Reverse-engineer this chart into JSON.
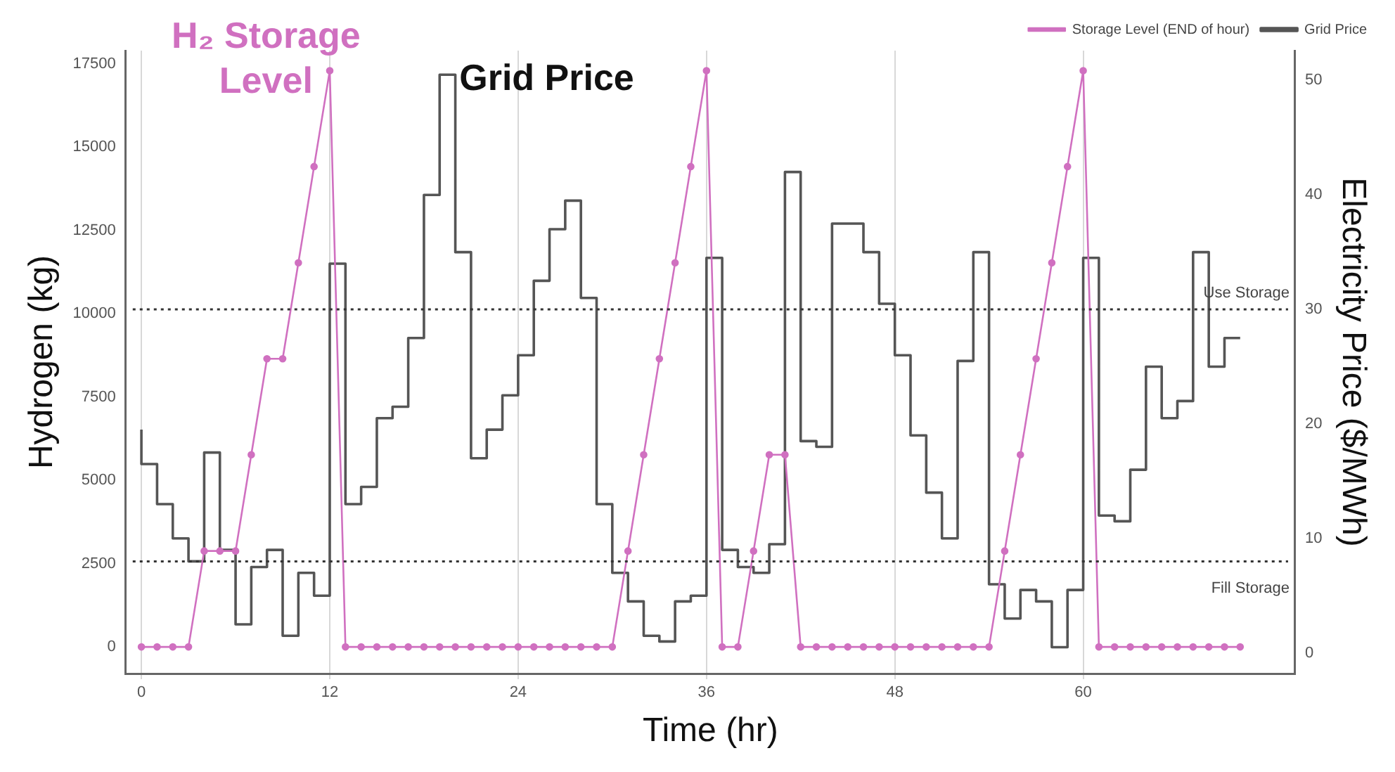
{
  "chart_data": {
    "type": "line",
    "xlabel": "Time (hr)",
    "ylabel": "Hydrogen (kg)",
    "y2label": "Electricity Price ($/MWh)",
    "annotations": [
      "H₂ Storage Level",
      "Grid Price"
    ],
    "x": [
      0,
      1,
      2,
      3,
      4,
      5,
      6,
      7,
      8,
      9,
      10,
      11,
      12,
      13,
      14,
      15,
      16,
      17,
      18,
      19,
      20,
      21,
      22,
      23,
      24,
      25,
      26,
      27,
      28,
      29,
      30,
      31,
      32,
      33,
      34,
      35,
      36,
      37,
      38,
      39,
      40,
      41,
      42,
      43,
      44,
      45,
      46,
      47,
      48,
      49,
      50,
      51,
      52,
      53,
      54,
      55,
      56,
      57,
      58,
      59,
      60,
      61,
      62,
      63,
      64,
      65,
      66,
      67,
      68,
      69,
      70
    ],
    "series": [
      {
        "name": "Storage Level (END of hour)",
        "type": "line",
        "marker": "circle",
        "color": "#d070c0",
        "values": [
          0,
          0,
          0,
          0,
          2880,
          2880,
          2880,
          5770,
          8650,
          8650,
          11530,
          14420,
          17300,
          0,
          0,
          0,
          0,
          0,
          0,
          0,
          0,
          0,
          0,
          0,
          0,
          0,
          0,
          0,
          0,
          0,
          0,
          2880,
          5770,
          8650,
          11530,
          14420,
          17300,
          0,
          0,
          2880,
          5770,
          5770,
          0,
          0,
          0,
          0,
          0,
          0,
          0,
          0,
          0,
          0,
          0,
          0,
          0,
          2880,
          5770,
          8650,
          11530,
          14420,
          17300,
          0,
          0,
          0,
          0,
          0,
          0,
          0,
          0,
          0,
          0
        ]
      },
      {
        "name": "Grid Price",
        "type": "step",
        "axis": "y2",
        "marker": "none",
        "color": "#555555",
        "values": [
          19.5,
          16.5,
          13,
          10,
          8,
          17.5,
          9,
          2.5,
          7.5,
          9,
          1.5,
          7,
          5,
          34,
          13,
          14.5,
          20.5,
          21.5,
          27.5,
          40,
          50.5,
          35,
          17,
          19.5,
          22.5,
          26,
          32.5,
          37,
          39.5,
          31,
          13,
          7,
          4.5,
          1.5,
          1,
          4.5,
          5,
          34.5,
          9,
          7.5,
          7,
          9.5,
          42,
          18.5,
          18,
          37.5,
          37.5,
          35,
          30.5,
          26,
          19,
          14,
          10,
          25.5,
          35,
          6,
          3,
          5.5,
          4.5,
          0.5,
          5.5,
          34.5,
          12,
          11.5,
          16,
          25,
          20.5,
          22,
          35,
          25,
          27.5
        ]
      }
    ],
    "xlim": [
      -1,
      73.5
    ],
    "xticks": [
      0,
      12,
      24,
      36,
      48,
      60
    ],
    "ylim": [
      -800,
      17900
    ],
    "yticks": [
      0,
      2500,
      5000,
      7500,
      10000,
      12500,
      15000,
      17500
    ],
    "y2lim": [
      -1.8,
      52.6
    ],
    "y2ticks": [
      0,
      10,
      20,
      30,
      40,
      50
    ],
    "ref_lines": [
      {
        "axis": "y2",
        "value": 30,
        "label": "Use Storage",
        "color": "#333333",
        "line_style": "dotted"
      },
      {
        "axis": "y2",
        "value": 8,
        "label": "Fill Storage",
        "color": "#333333",
        "line_style": "dotted"
      }
    ],
    "grid": "x",
    "legend": "top right"
  }
}
